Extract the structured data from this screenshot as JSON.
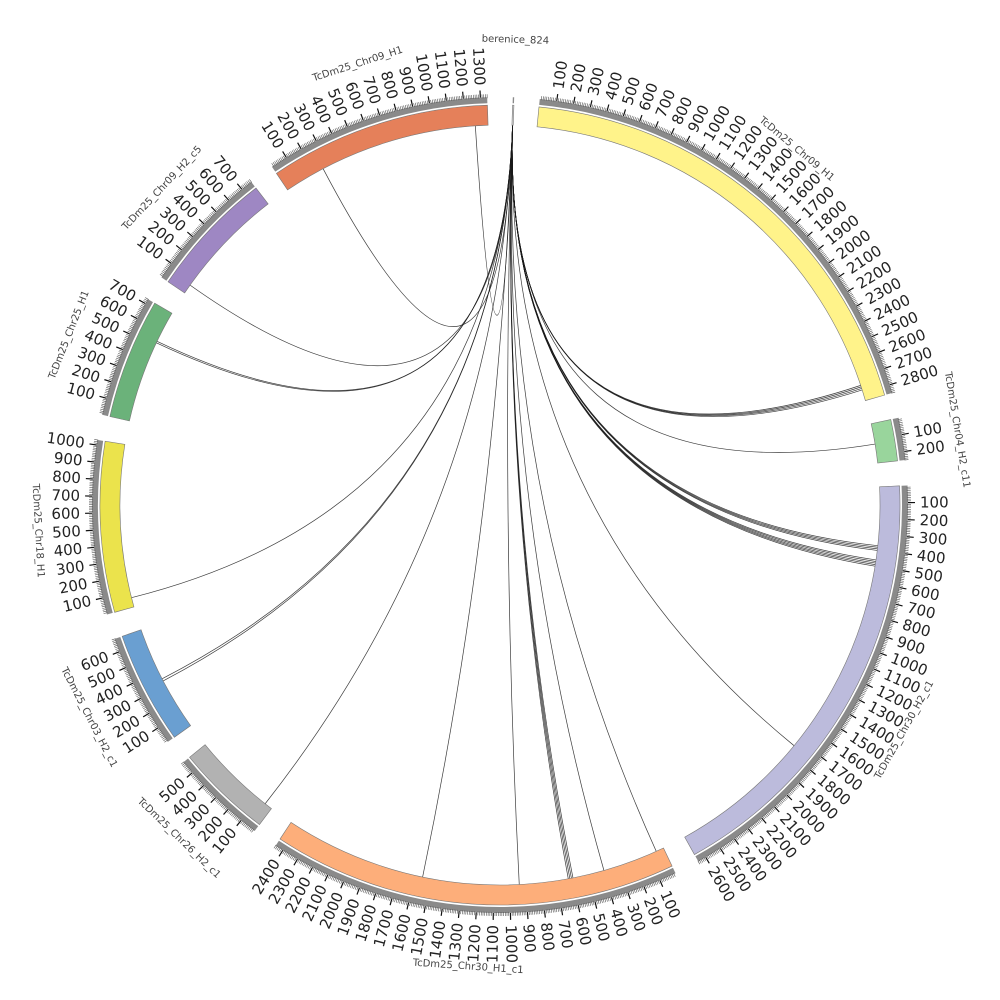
{
  "diagram": {
    "type": "circos",
    "segments": [
      {
        "id": "berenice",
        "name": "berenice_824",
        "length": 8,
        "color": "#d8d8d8",
        "tick_step": 100,
        "label_step": 0,
        "minor_step": 0,
        "link_anchor": true
      },
      {
        "id": "chr09h1b",
        "name": "TcDm25_Chr09_H1",
        "length": 2850,
        "color": "#fff38a",
        "tick_step": 100,
        "label_step": 100,
        "minor_step": 10
      },
      {
        "id": "chr04",
        "name": "TcDm25_Chr04_H2_c11",
        "length": 250,
        "color": "#99d59c",
        "tick_step": 100,
        "label_step": 100,
        "minor_step": 10
      },
      {
        "id": "chr30h2",
        "name": "TcDm25_Chr30_H2_c1",
        "length": 2650,
        "color": "#bcbbdc",
        "tick_step": 100,
        "label_step": 100,
        "minor_step": 10
      },
      {
        "id": "chr30h1",
        "name": "TcDm25_Chr30_H1_c1",
        "length": 2450,
        "color": "#fdae7a",
        "tick_step": 100,
        "label_step": 100,
        "minor_step": 10
      },
      {
        "id": "chr26",
        "name": "TcDm25_Chr26_H2_c1",
        "length": 580,
        "color": "#b2b2b2",
        "tick_step": 100,
        "label_step": 100,
        "minor_step": 10
      },
      {
        "id": "chr03",
        "name": "TcDm25_Chr03_H2_c1",
        "length": 680,
        "color": "#6a9fd1",
        "tick_step": 100,
        "label_step": 100,
        "minor_step": 10
      },
      {
        "id": "chr18",
        "name": "TcDm25_Chr18_H1",
        "length": 1030,
        "color": "#ebe34c",
        "tick_step": 100,
        "label_step": 100,
        "minor_step": 10
      },
      {
        "id": "chr25",
        "name": "TcDm25_Chr25_H1",
        "length": 730,
        "color": "#6bb27a",
        "tick_step": 100,
        "label_step": 100,
        "minor_step": 10
      },
      {
        "id": "chr09h2",
        "name": "TcDm25_Chr09_H2_c5",
        "length": 770,
        "color": "#9e87c3",
        "tick_step": 100,
        "label_step": 100,
        "minor_step": 10
      },
      {
        "id": "chr09h1a",
        "name": "TcDm25_Chr09_H1",
        "length": 1340,
        "color": "#e5805a",
        "tick_step": 100,
        "label_step": 100,
        "minor_step": 10
      }
    ],
    "links": [
      {
        "to": "chr09h1b",
        "pos": 2780
      },
      {
        "to": "chr09h1b",
        "pos": 2770
      },
      {
        "to": "chr09h1b",
        "pos": 2760
      },
      {
        "to": "chr09h1b",
        "pos": 2750
      },
      {
        "to": "chr04",
        "pos": 130
      },
      {
        "to": "chr30h2",
        "pos": 370
      },
      {
        "to": "chr30h2",
        "pos": 380
      },
      {
        "to": "chr30h2",
        "pos": 390
      },
      {
        "to": "chr30h2",
        "pos": 400
      },
      {
        "to": "chr30h2",
        "pos": 460
      },
      {
        "to": "chr30h2",
        "pos": 470
      },
      {
        "to": "chr30h2",
        "pos": 480
      },
      {
        "to": "chr30h2",
        "pos": 490
      },
      {
        "to": "chr30h2",
        "pos": 500
      },
      {
        "to": "chr30h2",
        "pos": 1750
      },
      {
        "to": "chr30h1",
        "pos": 50
      },
      {
        "to": "chr30h1",
        "pos": 400
      },
      {
        "to": "chr30h1",
        "pos": 600
      },
      {
        "to": "chr30h1",
        "pos": 610
      },
      {
        "to": "chr30h1",
        "pos": 620
      },
      {
        "to": "chr30h1",
        "pos": 630
      },
      {
        "to": "chr30h1",
        "pos": 940
      },
      {
        "to": "chr30h1",
        "pos": 1550
      },
      {
        "to": "chr26",
        "pos": 50
      },
      {
        "to": "chr03",
        "pos": 330
      },
      {
        "to": "chr03",
        "pos": 345
      },
      {
        "to": "chr18",
        "pos": 60
      },
      {
        "to": "chr25",
        "pos": 520
      },
      {
        "to": "chr25",
        "pos": 530
      },
      {
        "to": "chr09h2",
        "pos": 60
      },
      {
        "to": "chr09h1a",
        "pos": 260
      },
      {
        "to": "chr09h1a",
        "pos": 1260
      }
    ]
  }
}
